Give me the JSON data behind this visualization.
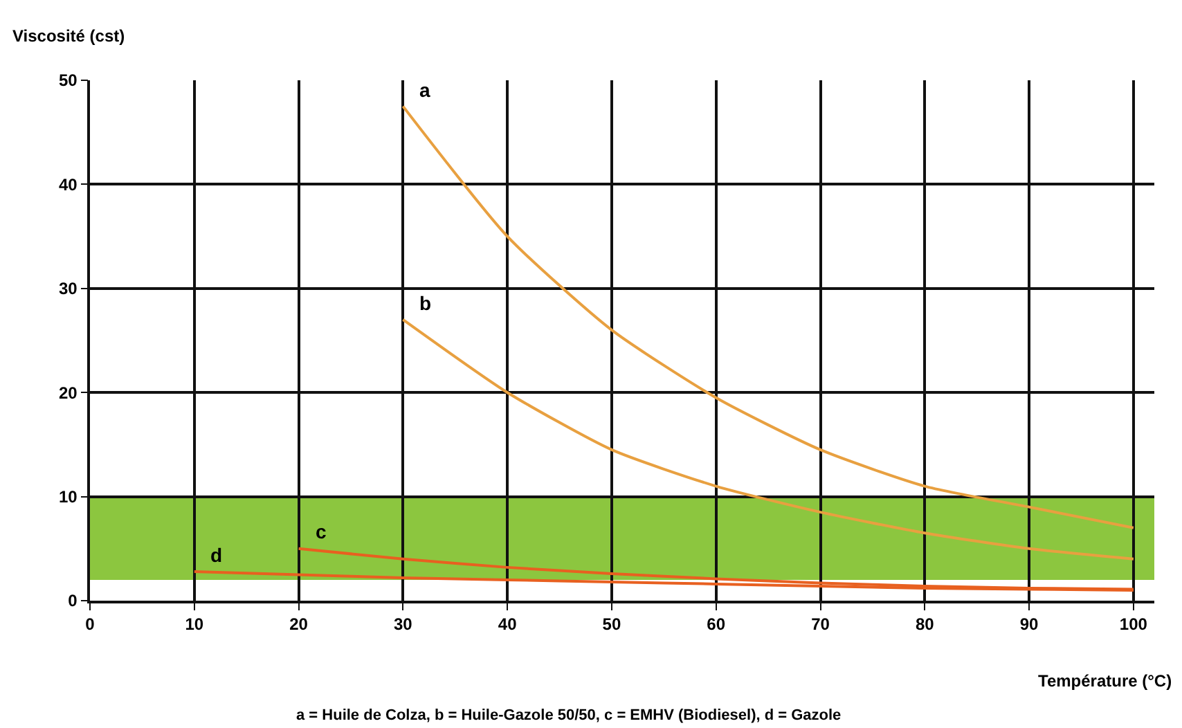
{
  "chart_data": {
    "type": "line",
    "ylabel": "Viscosité (cst)",
    "xlabel": "Température (°C)",
    "xlim": [
      0,
      102
    ],
    "xticks": [
      0,
      10,
      20,
      30,
      40,
      50,
      60,
      70,
      80,
      90,
      100
    ],
    "ylim": [
      0,
      50
    ],
    "yticks": [
      0,
      10,
      20,
      30,
      40,
      50
    ],
    "grid": true,
    "legend": false,
    "marker": "none",
    "line_style": "solid",
    "series": [
      {
        "name": "a",
        "color": "#e8a040",
        "x": [
          30,
          40,
          50,
          60,
          70,
          80,
          90,
          100
        ],
        "values": [
          47.5,
          35,
          26,
          19.5,
          14.5,
          11,
          9,
          7
        ]
      },
      {
        "name": "b",
        "color": "#e8a040",
        "x": [
          30,
          40,
          50,
          60,
          70,
          80,
          90,
          100
        ],
        "values": [
          27,
          20,
          14.5,
          11,
          8.5,
          6.5,
          5,
          4
        ]
      },
      {
        "name": "c",
        "color": "#e86020",
        "x": [
          20,
          30,
          40,
          50,
          60,
          70,
          80,
          90,
          100
        ],
        "values": [
          5,
          4,
          3.2,
          2.6,
          2.1,
          1.7,
          1.4,
          1.2,
          1.1
        ]
      },
      {
        "name": "d",
        "color": "#e86020",
        "x": [
          10,
          20,
          30,
          40,
          50,
          60,
          70,
          80,
          90,
          100
        ],
        "values": [
          2.8,
          2.5,
          2.2,
          2,
          1.8,
          1.6,
          1.4,
          1.2,
          1.1,
          1
        ]
      }
    ],
    "bands": [
      {
        "axis": "y",
        "from": 2,
        "to": 10,
        "color": "#8cc63f"
      }
    ],
    "annotations": [
      "a = Huile de Colza, b = Huile-Gazole 50/50, c = EMHV (Biodiesel), d = Gazole"
    ]
  }
}
